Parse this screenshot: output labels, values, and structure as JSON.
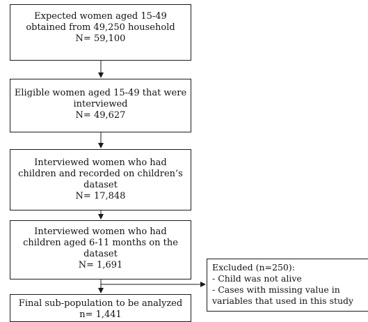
{
  "boxes": {
    "step1": {
      "lines": [
        "Expected women aged 15-49",
        "obtained from 49,250 household",
        "N= 59,100"
      ]
    },
    "step2": {
      "lines": [
        "Eligible women aged 15-49 that were",
        "interviewed",
        "N= 49,627"
      ]
    },
    "step3": {
      "lines": [
        "Interviewed women who had",
        "children and recorded on children’s",
        "dataset",
        "N= 17,848"
      ]
    },
    "step4": {
      "lines": [
        "Interviewed women who had",
        "children aged 6-11 months on the",
        "dataset",
        "N= 1,691"
      ]
    },
    "final": {
      "lines": [
        "Final sub-population to be analyzed",
        "n= 1,441"
      ]
    },
    "excluded": {
      "lines": [
        "Excluded (n=250):",
        "- Child was not alive",
        "- Cases with missing value in",
        "variables that used in this study"
      ]
    }
  }
}
